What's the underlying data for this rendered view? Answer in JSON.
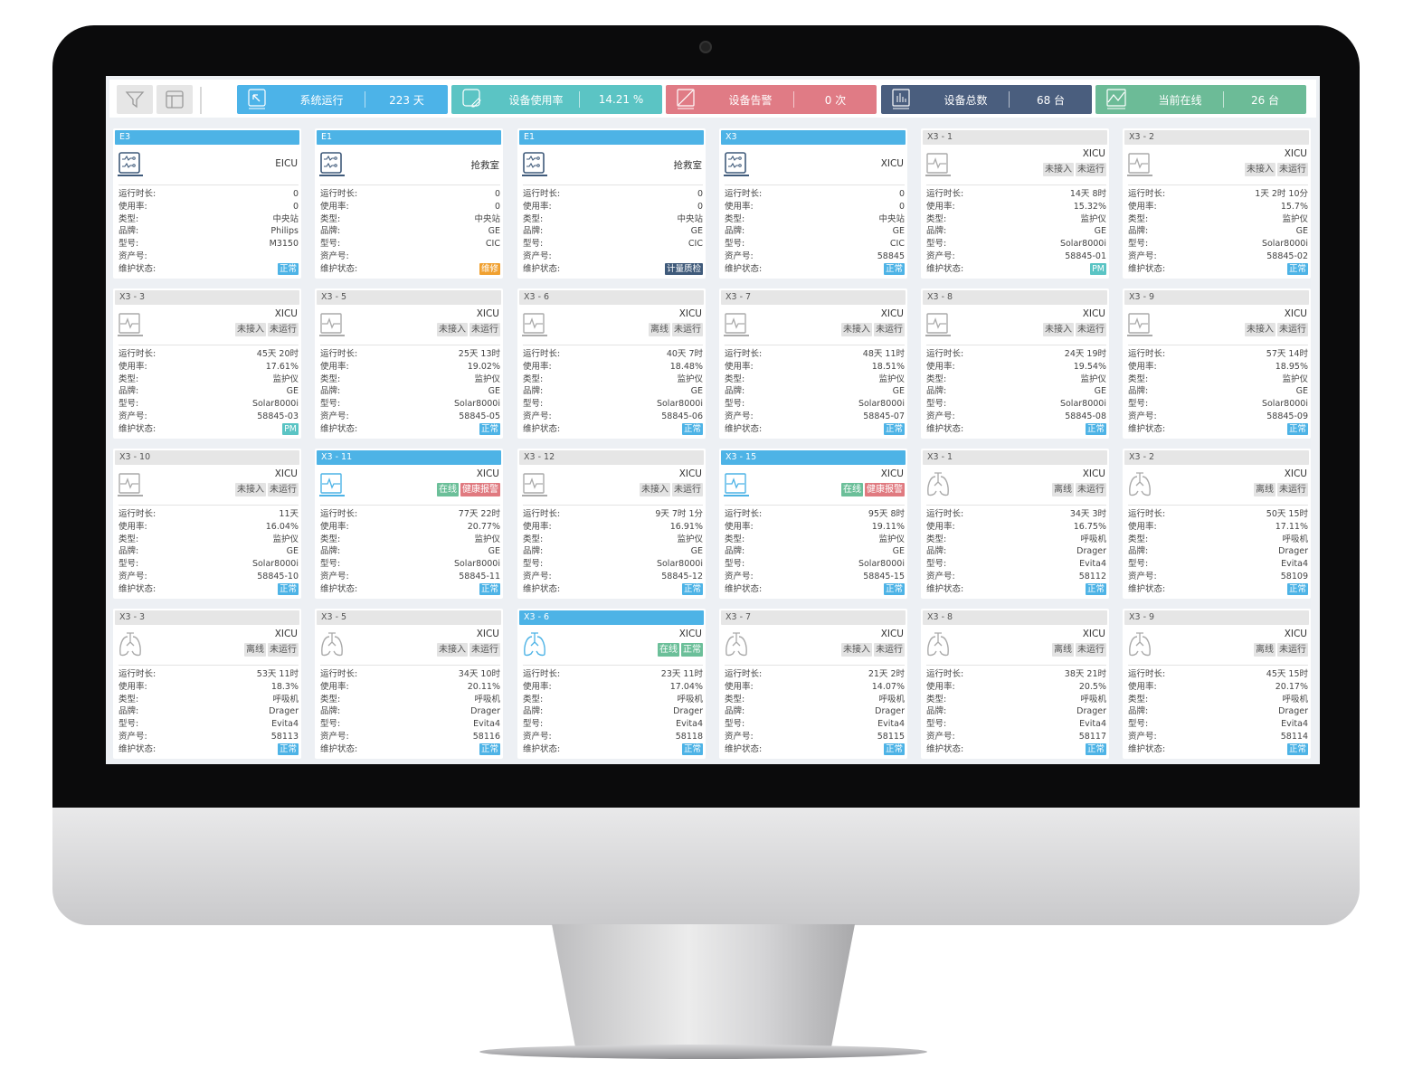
{
  "toolbar": {
    "filter_icon": "filter-icon",
    "layout_icon": "layout-icon"
  },
  "stats": [
    {
      "label": "系统运行",
      "value": "223 天",
      "color": "#4cb3e8",
      "icon": "cursor-arrow-icon"
    },
    {
      "label": "设备使用率",
      "value": "14.21 %",
      "color": "#5bc4c4",
      "icon": "edit-icon"
    },
    {
      "label": "设备告警",
      "value": "0 次",
      "color": "#e07b85",
      "icon": "alert-slash-icon"
    },
    {
      "label": "设备总数",
      "value": "68 台",
      "color": "#4a5e7e",
      "icon": "bar-chart-icon"
    },
    {
      "label": "当前在线",
      "value": "26 台",
      "color": "#6cbb97",
      "icon": "trend-icon"
    }
  ],
  "labels": [
    "运行时长:",
    "使用率:",
    "类型:",
    "品牌:",
    "型号:",
    "资产号:",
    "维护状态:"
  ],
  "colors": {
    "active": "#4db3e6",
    "normal": "#4db3e6",
    "repair": "#f0a030",
    "metering": "#3f5a7a",
    "pm": "#5ac4c4",
    "online": "#6bbf99",
    "alarm": "#e07a80"
  },
  "cards": [
    {
      "title": "E3",
      "active": true,
      "icon": "central-station",
      "location": "EICU",
      "tags": [],
      "values": [
        "0",
        "0",
        "中央站",
        "Philips",
        "M3150",
        "",
        ""
      ],
      "maint": {
        "label": "正常",
        "color": "#4db3e6"
      }
    },
    {
      "title": "E1",
      "active": true,
      "icon": "central-station",
      "location": "抢救室",
      "tags": [],
      "values": [
        "0",
        "0",
        "中央站",
        "GE",
        "CIC",
        "",
        ""
      ],
      "maint": {
        "label": "维修",
        "color": "#f0a030"
      }
    },
    {
      "title": "E1",
      "active": true,
      "icon": "central-station",
      "location": "抢救室",
      "tags": [],
      "values": [
        "0",
        "0",
        "中央站",
        "GE",
        "CIC",
        "",
        ""
      ],
      "maint": {
        "label": "计量质检",
        "color": "#3f5a7a"
      }
    },
    {
      "title": "X3",
      "active": true,
      "icon": "central-station",
      "location": "XICU",
      "tags": [],
      "values": [
        "0",
        "0",
        "中央站",
        "GE",
        "CIC",
        "58845",
        ""
      ],
      "maint": {
        "label": "正常",
        "color": "#4db3e6"
      }
    },
    {
      "title": "X3 - 1",
      "active": false,
      "icon": "monitor",
      "location": "XICU",
      "tags": [
        {
          "label": "未接入"
        },
        {
          "label": "未运行"
        }
      ],
      "values": [
        "14天 8时",
        "15.32%",
        "监护仪",
        "GE",
        "Solar8000i",
        "58845-01",
        ""
      ],
      "maint": {
        "label": "PM",
        "color": "#5ac4c4"
      }
    },
    {
      "title": "X3 - 2",
      "active": false,
      "icon": "monitor",
      "location": "XICU",
      "tags": [
        {
          "label": "未接入"
        },
        {
          "label": "未运行"
        }
      ],
      "values": [
        "1天 2时 10分",
        "15.7%",
        "监护仪",
        "GE",
        "Solar8000i",
        "58845-02",
        ""
      ],
      "maint": {
        "label": "正常",
        "color": "#4db3e6"
      }
    },
    {
      "title": "X3 - 3",
      "active": false,
      "icon": "monitor",
      "location": "XICU",
      "tags": [
        {
          "label": "未接入"
        },
        {
          "label": "未运行"
        }
      ],
      "values": [
        "45天 20时",
        "17.61%",
        "监护仪",
        "GE",
        "Solar8000i",
        "58845-03",
        ""
      ],
      "maint": {
        "label": "PM",
        "color": "#5ac4c4"
      }
    },
    {
      "title": "X3 - 5",
      "active": false,
      "icon": "monitor",
      "location": "XICU",
      "tags": [
        {
          "label": "未接入"
        },
        {
          "label": "未运行"
        }
      ],
      "values": [
        "25天 13时",
        "19.02%",
        "监护仪",
        "GE",
        "Solar8000i",
        "58845-05",
        ""
      ],
      "maint": {
        "label": "正常",
        "color": "#4db3e6"
      }
    },
    {
      "title": "X3 - 6",
      "active": false,
      "icon": "monitor",
      "location": "XICU",
      "tags": [
        {
          "label": "离线"
        },
        {
          "label": "未运行"
        }
      ],
      "values": [
        "40天 7时",
        "18.48%",
        "监护仪",
        "GE",
        "Solar8000i",
        "58845-06",
        ""
      ],
      "maint": {
        "label": "正常",
        "color": "#4db3e6"
      }
    },
    {
      "title": "X3 - 7",
      "active": false,
      "icon": "monitor",
      "location": "XICU",
      "tags": [
        {
          "label": "未接入"
        },
        {
          "label": "未运行"
        }
      ],
      "values": [
        "48天 11时",
        "18.51%",
        "监护仪",
        "GE",
        "Solar8000i",
        "58845-07",
        ""
      ],
      "maint": {
        "label": "正常",
        "color": "#4db3e6"
      }
    },
    {
      "title": "X3 - 8",
      "active": false,
      "icon": "monitor",
      "location": "XICU",
      "tags": [
        {
          "label": "未接入"
        },
        {
          "label": "未运行"
        }
      ],
      "values": [
        "24天 19时",
        "19.54%",
        "监护仪",
        "GE",
        "Solar8000i",
        "58845-08",
        ""
      ],
      "maint": {
        "label": "正常",
        "color": "#4db3e6"
      }
    },
    {
      "title": "X3 - 9",
      "active": false,
      "icon": "monitor",
      "location": "XICU",
      "tags": [
        {
          "label": "未接入"
        },
        {
          "label": "未运行"
        }
      ],
      "values": [
        "57天 14时",
        "18.95%",
        "监护仪",
        "GE",
        "Solar8000i",
        "58845-09",
        ""
      ],
      "maint": {
        "label": "正常",
        "color": "#4db3e6"
      }
    },
    {
      "title": "X3 - 10",
      "active": false,
      "icon": "monitor",
      "location": "XICU",
      "tags": [
        {
          "label": "未接入"
        },
        {
          "label": "未运行"
        }
      ],
      "values": [
        "11天",
        "16.04%",
        "监护仪",
        "GE",
        "Solar8000i",
        "58845-10",
        ""
      ],
      "maint": {
        "label": "正常",
        "color": "#4db3e6"
      }
    },
    {
      "title": "X3 - 11",
      "active": true,
      "icon": "monitor",
      "location": "XICU",
      "tags": [
        {
          "label": "在线",
          "color": "#6bbf99"
        },
        {
          "label": "健康报警",
          "color": "#e07a80"
        }
      ],
      "values": [
        "77天 22时",
        "20.77%",
        "监护仪",
        "GE",
        "Solar8000i",
        "58845-11",
        ""
      ],
      "maint": {
        "label": "正常",
        "color": "#4db3e6"
      }
    },
    {
      "title": "X3 - 12",
      "active": false,
      "icon": "monitor",
      "location": "XICU",
      "tags": [
        {
          "label": "未接入"
        },
        {
          "label": "未运行"
        }
      ],
      "values": [
        "9天 7时 1分",
        "16.91%",
        "监护仪",
        "GE",
        "Solar8000i",
        "58845-12",
        ""
      ],
      "maint": {
        "label": "正常",
        "color": "#4db3e6"
      }
    },
    {
      "title": "X3 - 15",
      "active": true,
      "icon": "monitor",
      "location": "XICU",
      "tags": [
        {
          "label": "在线",
          "color": "#6bbf99"
        },
        {
          "label": "健康报警",
          "color": "#e07a80"
        }
      ],
      "values": [
        "95天 8时",
        "19.11%",
        "监护仪",
        "GE",
        "Solar8000i",
        "58845-15",
        ""
      ],
      "maint": {
        "label": "正常",
        "color": "#4db3e6"
      }
    },
    {
      "title": "X3 - 1",
      "active": false,
      "icon": "ventilator",
      "location": "XICU",
      "tags": [
        {
          "label": "离线"
        },
        {
          "label": "未运行"
        }
      ],
      "values": [
        "34天 3时",
        "16.75%",
        "呼吸机",
        "Drager",
        "Evita4",
        "58112",
        ""
      ],
      "maint": {
        "label": "正常",
        "color": "#4db3e6"
      }
    },
    {
      "title": "X3 - 2",
      "active": false,
      "icon": "ventilator",
      "location": "XICU",
      "tags": [
        {
          "label": "离线"
        },
        {
          "label": "未运行"
        }
      ],
      "values": [
        "50天 15时",
        "17.11%",
        "呼吸机",
        "Drager",
        "Evita4",
        "58109",
        ""
      ],
      "maint": {
        "label": "正常",
        "color": "#4db3e6"
      }
    },
    {
      "title": "X3 - 3",
      "active": false,
      "icon": "ventilator",
      "location": "XICU",
      "tags": [
        {
          "label": "离线"
        },
        {
          "label": "未运行"
        }
      ],
      "values": [
        "53天 11时",
        "18.3%",
        "呼吸机",
        "Drager",
        "Evita4",
        "58113",
        ""
      ],
      "maint": {
        "label": "正常",
        "color": "#4db3e6"
      }
    },
    {
      "title": "X3 - 5",
      "active": false,
      "icon": "ventilator",
      "location": "XICU",
      "tags": [
        {
          "label": "未接入"
        },
        {
          "label": "未运行"
        }
      ],
      "values": [
        "34天 10时",
        "20.11%",
        "呼吸机",
        "Drager",
        "Evita4",
        "58116",
        ""
      ],
      "maint": {
        "label": "正常",
        "color": "#4db3e6"
      }
    },
    {
      "title": "X3 - 6",
      "active": true,
      "icon": "ventilator",
      "location": "XICU",
      "tags": [
        {
          "label": "在线",
          "color": "#6bbf99"
        },
        {
          "label": "正常",
          "color": "#6bbf99"
        }
      ],
      "values": [
        "23天 11时",
        "17.04%",
        "呼吸机",
        "Drager",
        "Evita4",
        "58118",
        ""
      ],
      "maint": {
        "label": "正常",
        "color": "#4db3e6"
      }
    },
    {
      "title": "X3 - 7",
      "active": false,
      "icon": "ventilator",
      "location": "XICU",
      "tags": [
        {
          "label": "未接入"
        },
        {
          "label": "未运行"
        }
      ],
      "values": [
        "21天 2时",
        "14.07%",
        "呼吸机",
        "Drager",
        "Evita4",
        "58115",
        ""
      ],
      "maint": {
        "label": "正常",
        "color": "#4db3e6"
      }
    },
    {
      "title": "X3 - 8",
      "active": false,
      "icon": "ventilator",
      "location": "XICU",
      "tags": [
        {
          "label": "离线"
        },
        {
          "label": "未运行"
        }
      ],
      "values": [
        "38天 21时",
        "20.5%",
        "呼吸机",
        "Drager",
        "Evita4",
        "58117",
        ""
      ],
      "maint": {
        "label": "正常",
        "color": "#4db3e6"
      }
    },
    {
      "title": "X3 - 9",
      "active": false,
      "icon": "ventilator",
      "location": "XICU",
      "tags": [
        {
          "label": "离线"
        },
        {
          "label": "未运行"
        }
      ],
      "values": [
        "45天 15时",
        "20.17%",
        "呼吸机",
        "Drager",
        "Evita4",
        "58114",
        ""
      ],
      "maint": {
        "label": "正常",
        "color": "#4db3e6"
      }
    }
  ]
}
